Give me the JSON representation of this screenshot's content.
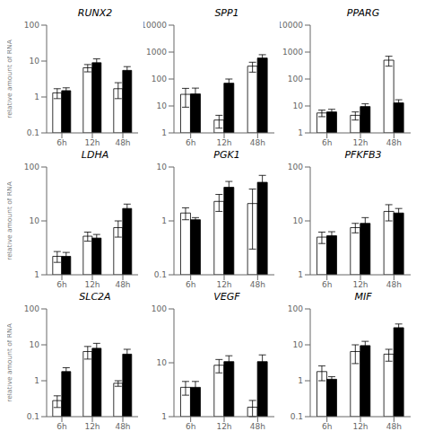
{
  "chart_data": [
    {
      "type": "bar",
      "title": "RUNX2",
      "ylabel": "relative amount of RNA",
      "categories": [
        "6h",
        "12h",
        "48h"
      ],
      "series": [
        {
          "color": "#ffffff",
          "values": [
            1.3,
            6.5,
            1.7
          ],
          "errors": [
            0.4,
            1.5,
            0.8
          ]
        },
        {
          "color": "#000000",
          "values": [
            1.5,
            9.0,
            5.5
          ],
          "errors": [
            0.3,
            2.5,
            1.5
          ]
        }
      ],
      "log": "y",
      "ylim": [
        0.1,
        100
      ],
      "yticks": [
        0.1,
        1,
        10,
        100
      ],
      "grid": false
    },
    {
      "type": "bar",
      "title": "SPP1",
      "categories": [
        "6h",
        "12h",
        "48h"
      ],
      "series": [
        {
          "color": "#ffffff",
          "values": [
            27,
            3,
            300
          ],
          "errors": [
            18,
            1.5,
            120
          ]
        },
        {
          "color": "#000000",
          "values": [
            28,
            70,
            600
          ],
          "errors": [
            18,
            30,
            200
          ]
        }
      ],
      "log": "y",
      "ylim": [
        1,
        10000
      ],
      "yticks": [
        1,
        10,
        100,
        1000,
        10000
      ],
      "grid": false
    },
    {
      "type": "bar",
      "title": "PPARG",
      "categories": [
        "6h",
        "12h",
        "48h"
      ],
      "series": [
        {
          "color": "#ffffff",
          "values": [
            5.5,
            4.5,
            500
          ],
          "errors": [
            1.5,
            1.5,
            200
          ]
        },
        {
          "color": "#000000",
          "values": [
            6.0,
            9.5,
            13
          ],
          "errors": [
            1.5,
            2.5,
            4
          ]
        }
      ],
      "log": "y",
      "ylim": [
        1,
        10000
      ],
      "yticks": [
        1,
        10,
        100,
        1000,
        10000
      ],
      "grid": false
    },
    {
      "type": "bar",
      "title": "LDHA",
      "ylabel": "relative amount of RNA",
      "categories": [
        "6h",
        "12h",
        "48h"
      ],
      "series": [
        {
          "color": "#ffffff",
          "values": [
            2.2,
            5.2,
            7.5
          ],
          "errors": [
            0.5,
            1.0,
            2.5
          ]
        },
        {
          "color": "#000000",
          "values": [
            2.2,
            4.8,
            17
          ],
          "errors": [
            0.4,
            0.8,
            3.5
          ]
        }
      ],
      "log": "y",
      "ylim": [
        1,
        100
      ],
      "yticks": [
        1,
        10,
        100
      ],
      "grid": false
    },
    {
      "type": "bar",
      "title": "PGK1",
      "categories": [
        "6h",
        "12h",
        "48h"
      ],
      "series": [
        {
          "color": "#ffffff",
          "values": [
            1.4,
            2.3,
            2.1
          ],
          "errors": [
            0.35,
            0.8,
            1.8
          ]
        },
        {
          "color": "#000000",
          "values": [
            1.05,
            4.2,
            5.2
          ],
          "errors": [
            0.1,
            1.2,
            1.8
          ]
        }
      ],
      "log": "y",
      "ylim": [
        0.1,
        10
      ],
      "yticks": [
        0.1,
        1,
        10
      ],
      "grid": false
    },
    {
      "type": "bar",
      "title": "PFKFB3",
      "categories": [
        "6h",
        "12h",
        "48h"
      ],
      "series": [
        {
          "color": "#ffffff",
          "values": [
            5.0,
            7.5,
            15
          ],
          "errors": [
            1.2,
            1.5,
            5
          ]
        },
        {
          "color": "#000000",
          "values": [
            5.3,
            9.0,
            14
          ],
          "errors": [
            1.0,
            2.5,
            3
          ]
        }
      ],
      "log": "y",
      "ylim": [
        1,
        100
      ],
      "yticks": [
        1,
        10,
        100
      ],
      "grid": false
    },
    {
      "type": "bar",
      "title": "SLC2A",
      "ylabel": "relative amount of RNA",
      "categories": [
        "6h",
        "12h",
        "48h"
      ],
      "series": [
        {
          "color": "#ffffff",
          "values": [
            0.28,
            6.5,
            0.85
          ],
          "errors": [
            0.1,
            2.5,
            0.15
          ]
        },
        {
          "color": "#000000",
          "values": [
            1.8,
            8.0,
            5.5
          ],
          "errors": [
            0.5,
            3.0,
            2.0
          ]
        }
      ],
      "log": "y",
      "ylim": [
        0.1,
        100
      ],
      "yticks": [
        0.1,
        1,
        10,
        100
      ],
      "grid": false
    },
    {
      "type": "bar",
      "title": "VEGF",
      "categories": [
        "6h",
        "12h",
        "48h"
      ],
      "series": [
        {
          "color": "#ffffff",
          "values": [
            3.5,
            9.0,
            1.5
          ],
          "errors": [
            1.0,
            2.5,
            0.5
          ]
        },
        {
          "color": "#000000",
          "values": [
            3.5,
            10.5,
            10.5
          ],
          "errors": [
            1.0,
            3.0,
            3.5
          ]
        }
      ],
      "log": "y",
      "ylim": [
        1,
        100
      ],
      "yticks": [
        1,
        10,
        100
      ],
      "grid": false
    },
    {
      "type": "bar",
      "title": "MIF",
      "categories": [
        "6h",
        "12h",
        "48h"
      ],
      "series": [
        {
          "color": "#ffffff",
          "values": [
            1.8,
            6.5,
            5.5
          ],
          "errors": [
            0.8,
            3.5,
            2.0
          ]
        },
        {
          "color": "#000000",
          "values": [
            1.1,
            9.5,
            30
          ],
          "errors": [
            0.2,
            3.0,
            8
          ]
        }
      ],
      "log": "y",
      "ylim": [
        0.1,
        100
      ],
      "yticks": [
        0.1,
        1,
        10,
        100
      ],
      "grid": false
    }
  ]
}
